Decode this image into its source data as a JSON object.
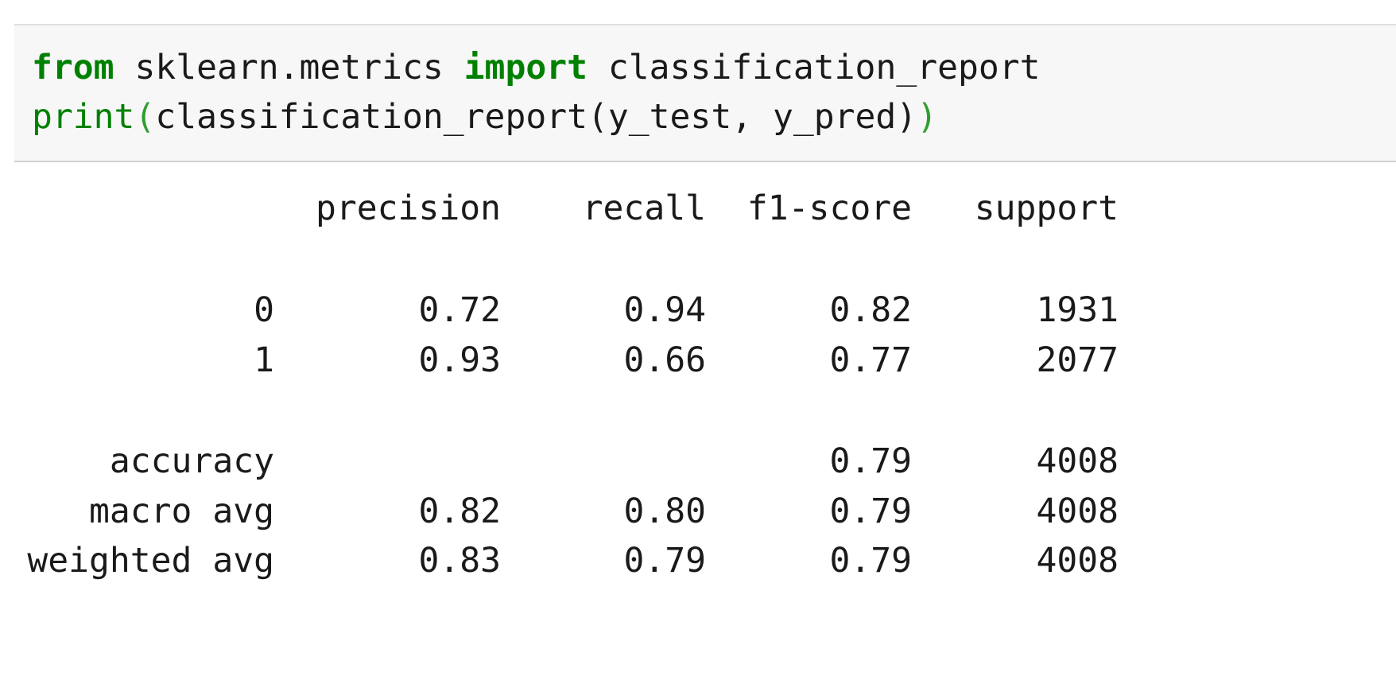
{
  "code": {
    "lines": [
      [
        {
          "text": "from",
          "kind": "keyword"
        },
        {
          "text": " sklearn.metrics ",
          "kind": "plain"
        },
        {
          "text": "import",
          "kind": "keyword"
        },
        {
          "text": " classification_report",
          "kind": "plain"
        }
      ],
      [
        {
          "text": "print",
          "kind": "builtin"
        },
        {
          "text": "(",
          "kind": "bracket"
        },
        {
          "text": "classification_report(y_test, y_pred)",
          "kind": "plain"
        },
        {
          "text": ")",
          "kind": "bracket"
        }
      ]
    ]
  },
  "output": {
    "header": [
      "precision",
      "recall",
      "f1-score",
      "support"
    ],
    "groups": [
      [
        {
          "label": "0",
          "cells": [
            "0.72",
            "0.94",
            "0.82",
            "1931"
          ]
        },
        {
          "label": "1",
          "cells": [
            "0.93",
            "0.66",
            "0.77",
            "2077"
          ]
        }
      ],
      [
        {
          "label": "accuracy",
          "cells": [
            null,
            null,
            "0.79",
            "4008"
          ]
        },
        {
          "label": "macro avg",
          "cells": [
            "0.82",
            "0.80",
            "0.79",
            "4008"
          ]
        },
        {
          "label": "weighted avg",
          "cells": [
            "0.83",
            "0.79",
            "0.79",
            "4008"
          ]
        }
      ]
    ]
  }
}
